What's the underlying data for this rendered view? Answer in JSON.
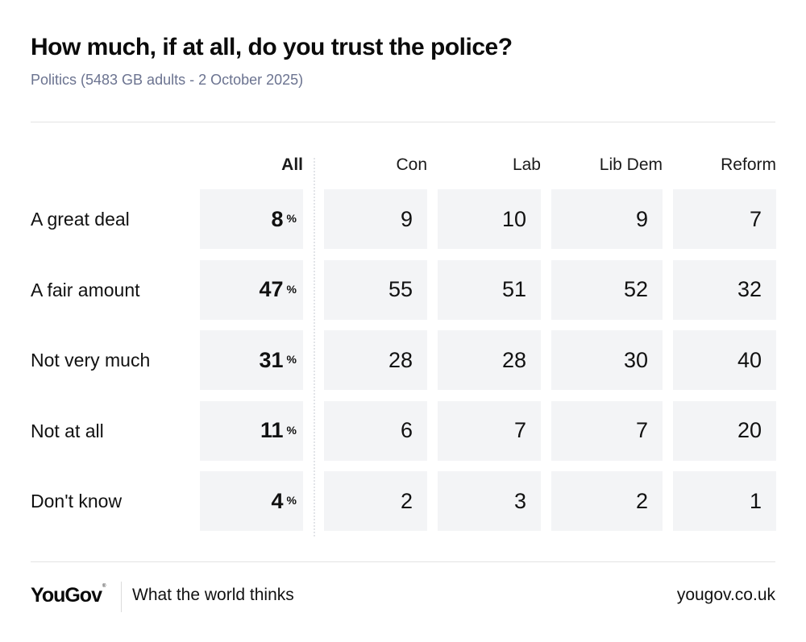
{
  "header": {
    "title": "How much, if at all, do you trust the police?",
    "subtitle": "Politics (5483 GB adults - 2 October 2025)"
  },
  "chart_data": {
    "type": "table",
    "title": "How much, if at all, do you trust the police?",
    "subtitle": "Politics (5483 GB adults - 2 October 2025)",
    "columns": [
      "All",
      "Con",
      "Lab",
      "Lib Dem",
      "Reform"
    ],
    "unit": "%",
    "rows": [
      {
        "label": "A great deal",
        "values": [
          8,
          9,
          10,
          9,
          7
        ]
      },
      {
        "label": "A fair amount",
        "values": [
          47,
          55,
          51,
          52,
          32
        ]
      },
      {
        "label": "Not very much",
        "values": [
          31,
          28,
          28,
          30,
          40
        ]
      },
      {
        "label": "Not at all",
        "values": [
          11,
          6,
          7,
          7,
          20
        ]
      },
      {
        "label": "Don't know",
        "values": [
          4,
          2,
          3,
          2,
          1
        ]
      }
    ]
  },
  "colors": {
    "cell_background": "#f3f4f6",
    "subtitle": "#6b7390",
    "text": "#111111"
  },
  "footer": {
    "logo": "YouGov",
    "logo_mark": "®",
    "tagline": "What the world thinks",
    "site": "yougov.co.uk"
  }
}
